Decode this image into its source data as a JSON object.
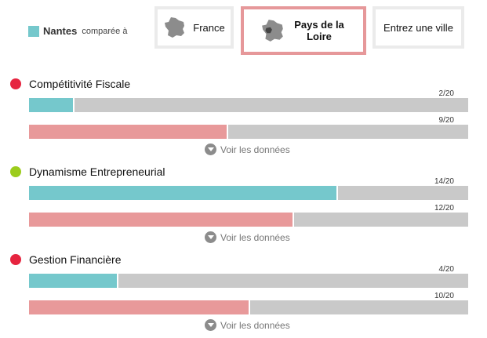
{
  "legend": {
    "city": "Nantes",
    "compared_label": "comparée à",
    "color": "#75c8cc"
  },
  "tabs": [
    {
      "label": "France",
      "icon": "france-map-icon",
      "active": false
    },
    {
      "label": "Pays de la Loire",
      "icon": "france-map-region-icon",
      "active": true
    },
    {
      "label": "Entrez une ville",
      "active": false
    }
  ],
  "colors": {
    "city_bar": "#75c8cc",
    "region_bar": "#e8999a",
    "track": "#c9c9c9",
    "status_red": "#e6243f",
    "status_green": "#9ccc1c"
  },
  "sections": [
    {
      "title": "Compétitivité Fiscale",
      "status": "red",
      "city_score": "2/20",
      "region_score": "9/20",
      "city_value": 2,
      "region_value": 9,
      "toggle_label": "Voir les données"
    },
    {
      "title": "Dynamisme Entrepreneurial",
      "status": "green",
      "city_score": "14/20",
      "region_score": "12/20",
      "city_value": 14,
      "region_value": 12,
      "toggle_label": "Voir les données"
    },
    {
      "title": "Gestion Financière",
      "status": "red",
      "city_score": "4/20",
      "region_score": "10/20",
      "city_value": 4,
      "region_value": 10,
      "toggle_label": "Voir les données"
    }
  ]
}
